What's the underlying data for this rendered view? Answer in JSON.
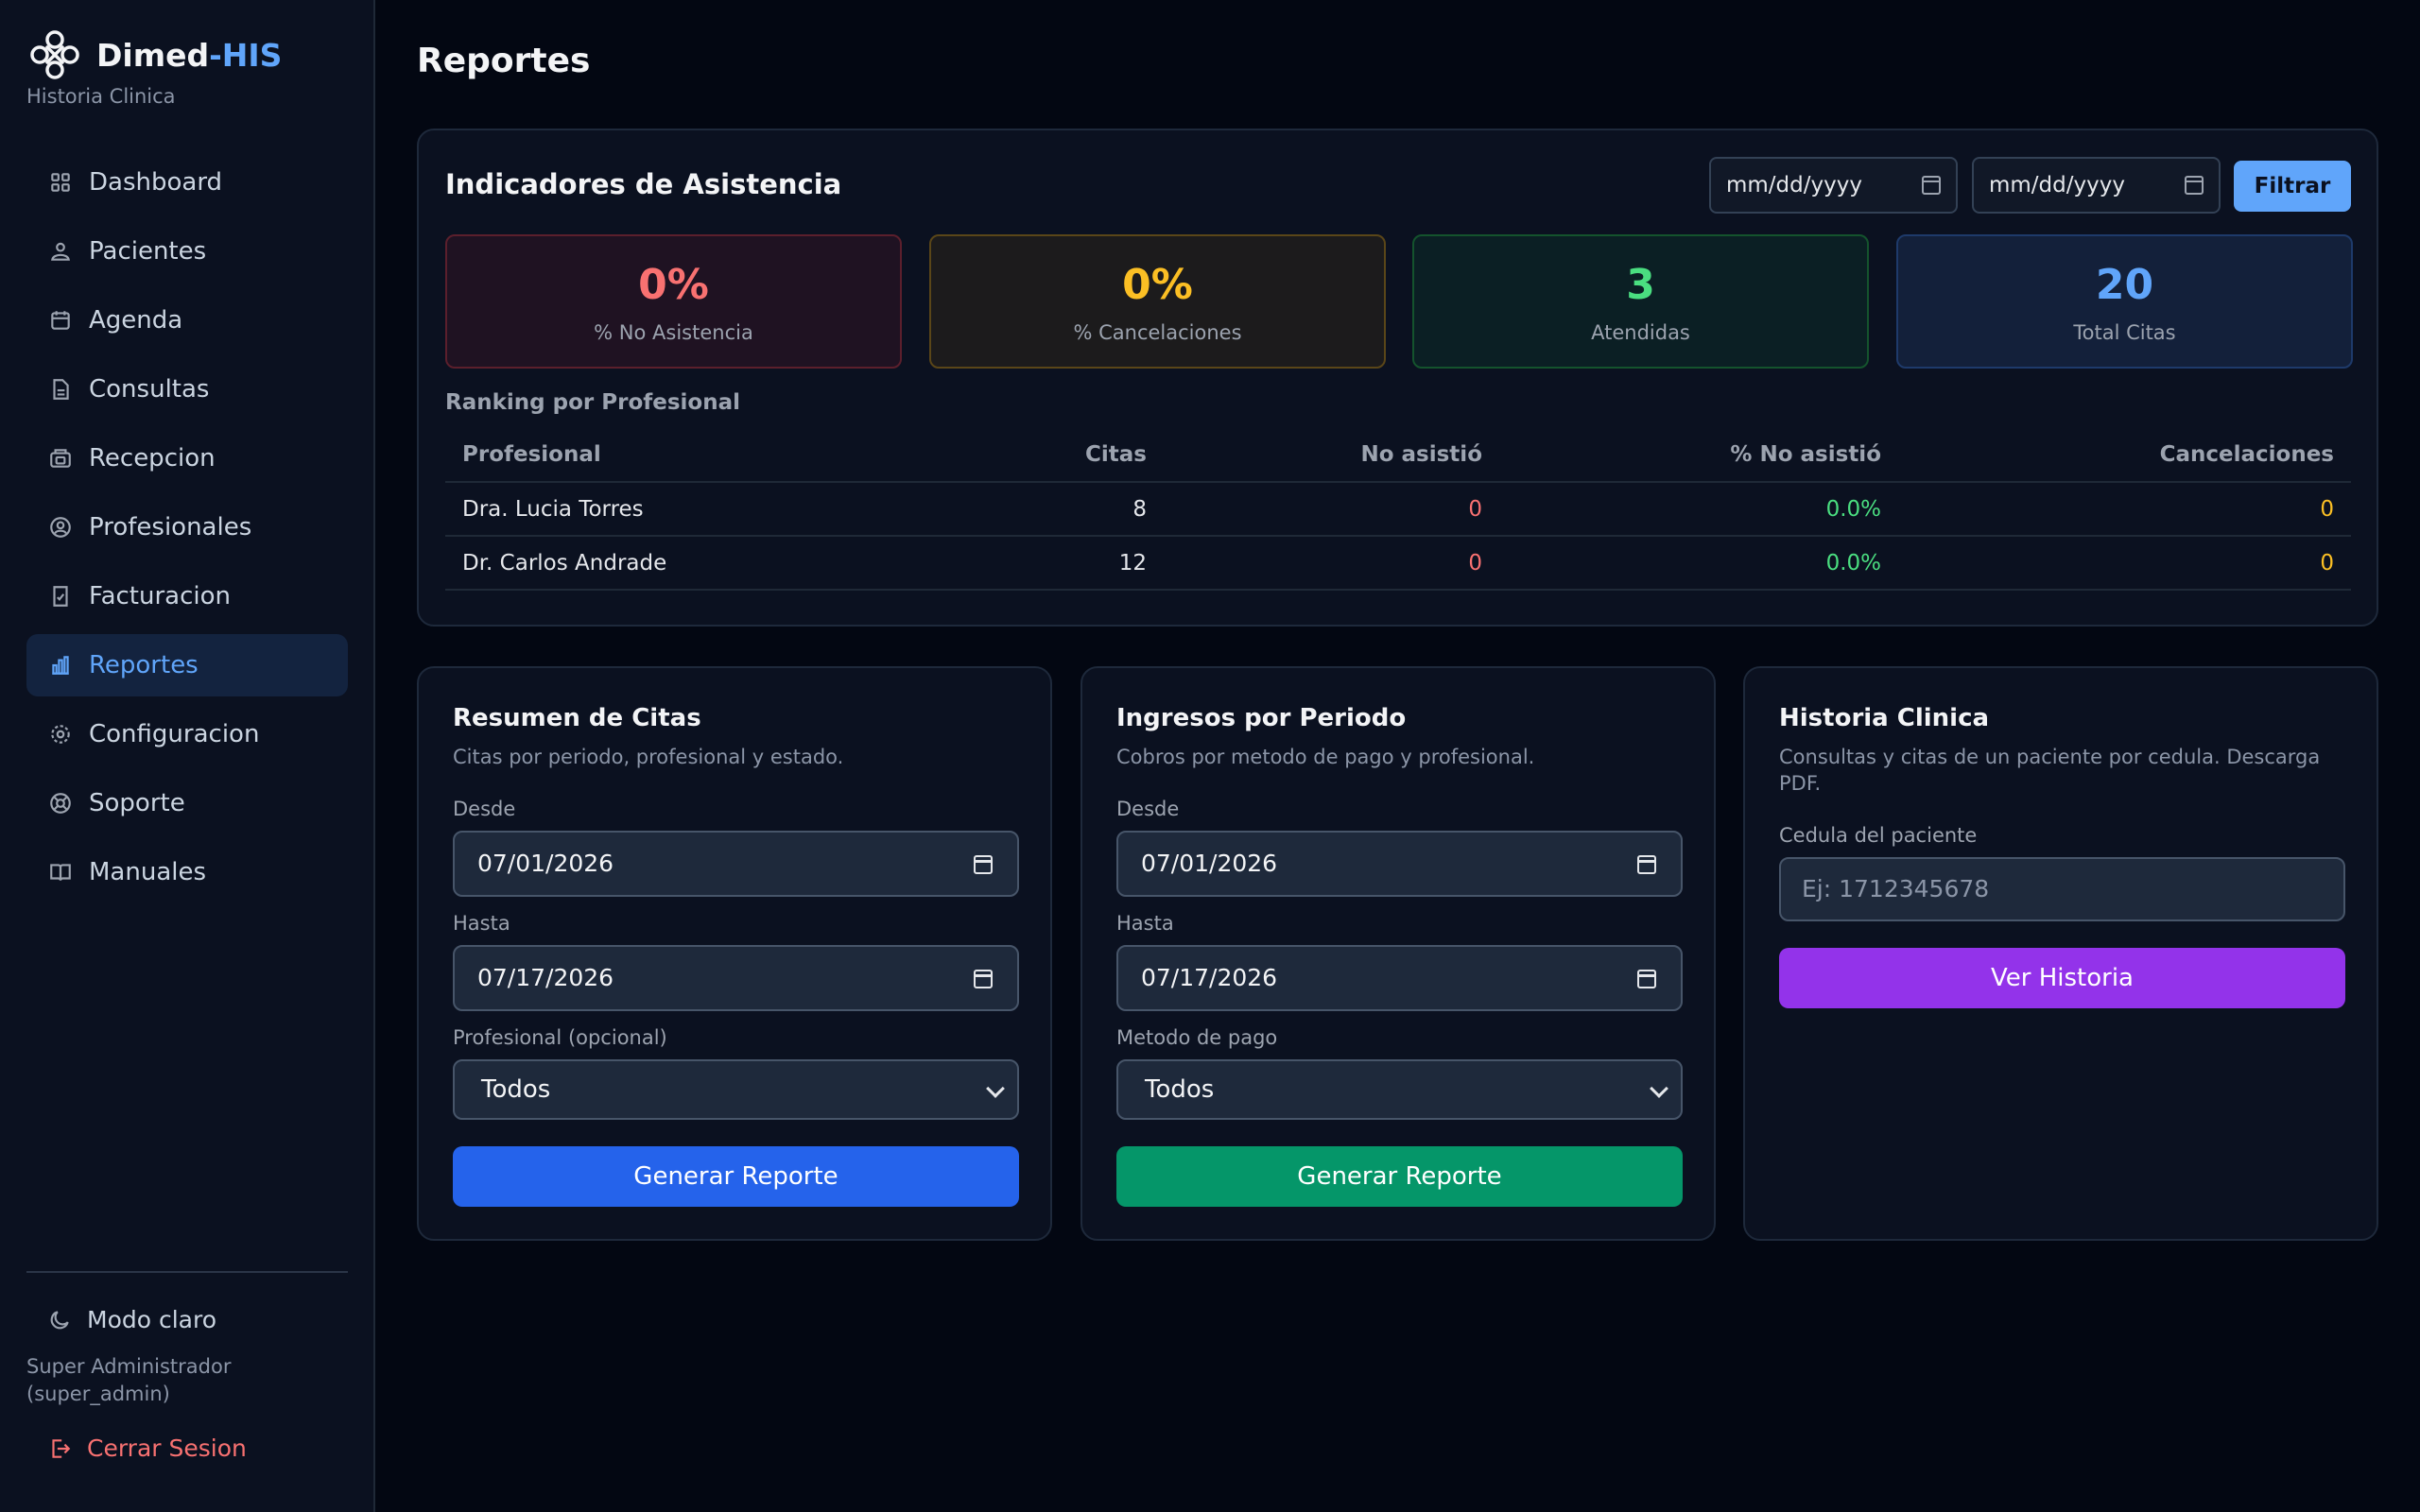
{
  "brand": {
    "name_main": "Dimed",
    "name_accent": "-HIS",
    "subtitle": "Historia Clinica"
  },
  "nav": [
    {
      "label": "Dashboard",
      "icon": "grid-icon"
    },
    {
      "label": "Pacientes",
      "icon": "users-icon"
    },
    {
      "label": "Agenda",
      "icon": "calendar-icon"
    },
    {
      "label": "Consultas",
      "icon": "document-icon"
    },
    {
      "label": "Recepcion",
      "icon": "reception-icon"
    },
    {
      "label": "Profesionales",
      "icon": "user-circle-icon"
    },
    {
      "label": "Facturacion",
      "icon": "invoice-icon"
    },
    {
      "label": "Reportes",
      "icon": "bar-chart-icon",
      "active": true
    },
    {
      "label": "Configuracion",
      "icon": "gear-icon"
    },
    {
      "label": "Soporte",
      "icon": "support-icon"
    },
    {
      "label": "Manuales",
      "icon": "book-icon"
    }
  ],
  "footer": {
    "mode": "Modo claro",
    "user": "Super Administrador (super_admin)",
    "logout": "Cerrar Sesion"
  },
  "page": {
    "title": "Reportes"
  },
  "indicators": {
    "title": "Indicadores de Asistencia",
    "date_from_placeholder": "mm/dd/yyyy",
    "date_to_placeholder": "mm/dd/yyyy",
    "filter_label": "Filtrar",
    "stats": [
      {
        "value": "0%",
        "label": "% No Asistencia",
        "color": "#f87171"
      },
      {
        "value": "0%",
        "label": "% Cancelaciones",
        "color": "#fbbf24"
      },
      {
        "value": "3",
        "label": "Atendidas",
        "color": "#4ade80"
      },
      {
        "value": "20",
        "label": "Total Citas",
        "color": "#60a5fa"
      }
    ],
    "ranking_title": "Ranking por Profesional",
    "columns": [
      "Profesional",
      "Citas",
      "No asistió",
      "% No asistió",
      "Cancelaciones"
    ],
    "rows": [
      [
        "Dra. Lucia Torres",
        "8",
        "0",
        "0.0%",
        "0"
      ],
      [
        "Dr. Carlos Andrade",
        "12",
        "0",
        "0.0%",
        "0"
      ]
    ]
  },
  "reports": {
    "citas": {
      "title": "Resumen de Citas",
      "description": "Citas por periodo, profesional y estado.",
      "from_label": "Desde",
      "from_value": "07/01/2026",
      "to_label": "Hasta",
      "to_value": "07/17/2026",
      "select_label": "Profesional (opcional)",
      "select_value": "Todos",
      "button": "Generar Reporte"
    },
    "ingresos": {
      "title": "Ingresos por Periodo",
      "description": "Cobros por metodo de pago y profesional.",
      "from_label": "Desde",
      "from_value": "07/01/2026",
      "to_label": "Hasta",
      "to_value": "07/17/2026",
      "select_label": "Metodo de pago",
      "select_value": "Todos",
      "button": "Generar Reporte"
    },
    "historia": {
      "title": "Historia Clinica",
      "description": "Consultas y citas de un paciente por cedula. Descarga PDF.",
      "input_label": "Cedula del paciente",
      "input_placeholder": "Ej: 1712345678",
      "button": "Ver Historia"
    }
  }
}
